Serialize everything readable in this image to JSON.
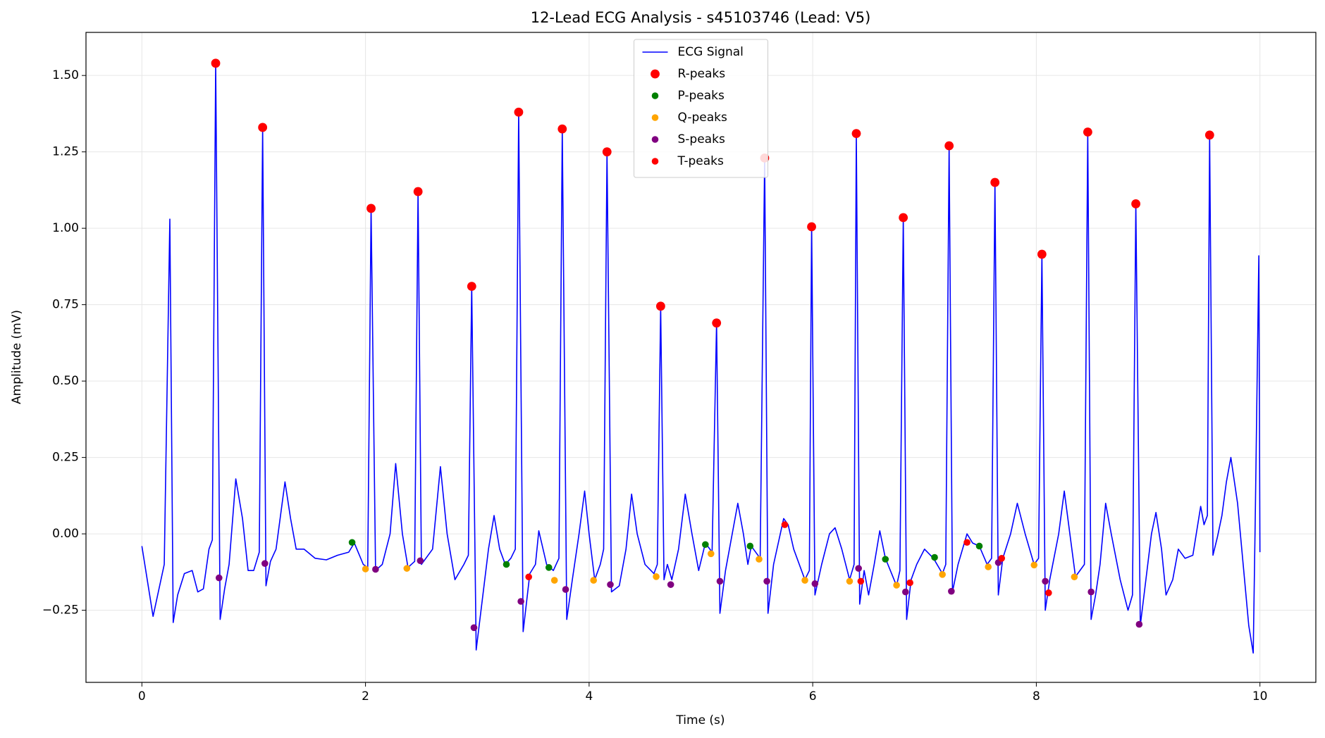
{
  "chart_data": {
    "type": "line",
    "title": "12-Lead ECG Analysis - s45103746 (Lead: V5)",
    "xlabel": "Time (s)",
    "ylabel": "Amplitude (mV)",
    "xlim": [
      -0.5,
      10.5
    ],
    "ylim": [
      -0.486,
      1.641
    ],
    "xticks": [
      0,
      2,
      4,
      6,
      8,
      10
    ],
    "yticks": [
      {
        "value": -0.25,
        "label": "−0.25"
      },
      {
        "value": 0,
        "label": "0.00"
      },
      {
        "value": 0.25,
        "label": "0.25"
      },
      {
        "value": 0.5,
        "label": "0.50"
      },
      {
        "value": 0.75,
        "label": "0.75"
      },
      {
        "value": 1,
        "label": "1.00"
      },
      {
        "value": 1.25,
        "label": "1.25"
      },
      {
        "value": 1.5,
        "label": "1.50"
      }
    ],
    "grid": true,
    "legend": "upper center",
    "series": [
      {
        "name": "ECG Signal",
        "type": "line",
        "color": "#0000ff",
        "x": [
          0,
          0.1,
          0.2,
          0.25,
          0.28,
          0.32,
          0.38,
          0.45,
          0.5,
          0.55,
          0.6,
          0.63,
          0.66,
          0.7,
          0.74,
          0.78,
          0.84,
          0.9,
          0.95,
          1.0,
          1.05,
          1.08,
          1.11,
          1.15,
          1.2,
          1.28,
          1.33,
          1.38,
          1.45,
          1.55,
          1.65,
          1.75,
          1.85,
          1.9,
          1.98,
          2.02,
          2.05,
          2.09,
          2.15,
          2.22,
          2.27,
          2.33,
          2.38,
          2.44,
          2.47,
          2.5,
          2.6,
          2.67,
          2.73,
          2.8,
          2.88,
          2.92,
          2.95,
          2.99,
          3.05,
          3.1,
          3.15,
          3.2,
          3.25,
          3.3,
          3.34,
          3.37,
          3.41,
          3.47,
          3.52,
          3.55,
          3.62,
          3.68,
          3.73,
          3.76,
          3.8,
          3.85,
          3.91,
          3.96,
          4.0,
          4.05,
          4.1,
          4.13,
          4.16,
          4.2,
          4.27,
          4.33,
          4.38,
          4.43,
          4.5,
          4.58,
          4.61,
          4.64,
          4.67,
          4.7,
          4.74,
          4.8,
          4.86,
          4.92,
          4.98,
          5.04,
          5.1,
          5.14,
          5.17,
          5.22,
          5.28,
          5.33,
          5.38,
          5.42,
          5.45,
          5.53,
          5.57,
          5.6,
          5.65,
          5.74,
          5.78,
          5.83,
          5.88,
          5.93,
          5.97,
          5.99,
          6.02,
          6.08,
          6.15,
          6.2,
          6.26,
          6.33,
          6.37,
          6.39,
          6.42,
          6.46,
          6.5,
          6.55,
          6.6,
          6.65,
          6.75,
          6.78,
          6.81,
          6.84,
          6.88,
          6.93,
          7.0,
          7.08,
          7.16,
          7.19,
          7.22,
          7.25,
          7.3,
          7.38,
          7.43,
          7.49,
          7.56,
          7.6,
          7.63,
          7.66,
          7.7,
          7.77,
          7.83,
          7.9,
          7.98,
          8.02,
          8.05,
          8.08,
          8.12,
          8.2,
          8.25,
          8.3,
          8.35,
          8.43,
          8.46,
          8.49,
          8.53,
          8.57,
          8.62,
          8.67,
          8.75,
          8.82,
          8.86,
          8.89,
          8.93,
          8.98,
          9.03,
          9.07,
          9.12,
          9.16,
          9.22,
          9.27,
          9.33,
          9.4,
          9.47,
          9.5,
          9.53,
          9.55,
          9.58,
          9.62,
          9.66,
          9.7,
          9.74,
          9.8,
          9.85,
          9.9,
          9.94,
          9.96,
          9.99,
          10.0
        ],
        "values": [
          -0.04,
          -0.27,
          -0.1,
          1.03,
          -0.29,
          -0.2,
          -0.13,
          -0.12,
          -0.19,
          -0.18,
          -0.05,
          -0.02,
          1.54,
          -0.28,
          -0.18,
          -0.1,
          0.18,
          0.05,
          -0.12,
          -0.12,
          -0.06,
          1.33,
          -0.17,
          -0.09,
          -0.05,
          0.17,
          0.05,
          -0.05,
          -0.05,
          -0.08,
          -0.085,
          -0.07,
          -0.06,
          -0.03,
          -0.1,
          -0.11,
          1.065,
          -0.12,
          -0.1,
          0.0,
          0.23,
          0.0,
          -0.11,
          -0.09,
          1.12,
          -0.1,
          -0.05,
          0.22,
          0.0,
          -0.15,
          -0.1,
          -0.07,
          0.81,
          -0.38,
          -0.2,
          -0.05,
          0.06,
          -0.05,
          -0.1,
          -0.08,
          -0.05,
          1.38,
          -0.32,
          -0.13,
          -0.1,
          0.01,
          -0.1,
          -0.12,
          -0.08,
          1.325,
          -0.28,
          -0.15,
          0.0,
          0.14,
          0.0,
          -0.15,
          -0.1,
          -0.05,
          1.25,
          -0.19,
          -0.17,
          -0.05,
          0.13,
          0.0,
          -0.1,
          -0.13,
          -0.1,
          0.745,
          -0.15,
          -0.1,
          -0.15,
          -0.05,
          0.13,
          0.0,
          -0.12,
          -0.03,
          -0.06,
          0.69,
          -0.26,
          -0.12,
          0.0,
          0.1,
          0.0,
          -0.1,
          -0.04,
          -0.08,
          1.23,
          -0.26,
          -0.1,
          0.05,
          0.03,
          -0.05,
          -0.1,
          -0.15,
          -0.12,
          1.005,
          -0.2,
          -0.1,
          0.0,
          0.02,
          -0.05,
          -0.15,
          -0.1,
          1.31,
          -0.23,
          -0.12,
          -0.2,
          -0.1,
          0.01,
          -0.08,
          -0.17,
          -0.12,
          1.035,
          -0.28,
          -0.15,
          -0.1,
          -0.05,
          -0.08,
          -0.13,
          -0.1,
          1.27,
          -0.19,
          -0.1,
          0.0,
          -0.03,
          -0.04,
          -0.1,
          -0.08,
          1.15,
          -0.2,
          -0.08,
          0.0,
          0.1,
          0.0,
          -0.1,
          -0.08,
          0.915,
          -0.25,
          -0.15,
          0.0,
          0.14,
          0.0,
          -0.14,
          -0.1,
          1.315,
          -0.28,
          -0.2,
          -0.1,
          0.1,
          0.0,
          -0.15,
          -0.25,
          -0.2,
          1.08,
          -0.3,
          -0.15,
          0.0,
          0.07,
          -0.05,
          -0.2,
          -0.15,
          -0.05,
          -0.08,
          -0.07,
          0.09,
          0.03,
          0.06,
          1.305,
          -0.07,
          -0.01,
          0.06,
          0.17,
          0.25,
          0.1,
          -0.1,
          -0.3,
          -0.39,
          0.1,
          0.91,
          -0.06
        ]
      },
      {
        "name": "R-peaks",
        "type": "scatter",
        "color": "#ff0000",
        "size": 8,
        "x": [
          0.66,
          1.08,
          2.05,
          2.47,
          2.95,
          3.37,
          3.76,
          4.16,
          4.64,
          5.14,
          5.57,
          5.99,
          6.39,
          6.81,
          7.22,
          7.63,
          8.05,
          8.46,
          8.89,
          9.55
        ],
        "values": [
          1.54,
          1.33,
          1.065,
          1.12,
          0.81,
          1.38,
          1.325,
          1.25,
          0.745,
          0.69,
          1.23,
          1.005,
          1.31,
          1.035,
          1.27,
          1.15,
          0.915,
          1.315,
          1.08,
          1.305
        ]
      },
      {
        "name": "P-peaks",
        "type": "scatter",
        "color": "#008000",
        "size": 6,
        "x": [
          1.88,
          3.26,
          3.64,
          5.04,
          5.44,
          6.65,
          7.09,
          7.49
        ],
        "values": [
          -0.028,
          -0.1,
          -0.11,
          -0.035,
          -0.04,
          -0.083,
          -0.077,
          -0.04
        ]
      },
      {
        "name": "Q-peaks",
        "type": "scatter",
        "color": "#ffa500",
        "size": 6,
        "x": [
          2.0,
          2.37,
          3.69,
          4.04,
          4.6,
          5.09,
          5.52,
          5.93,
          6.33,
          6.75,
          7.16,
          7.57,
          7.98,
          8.34
        ],
        "values": [
          -0.115,
          -0.113,
          -0.152,
          -0.152,
          -0.14,
          -0.065,
          -0.083,
          -0.152,
          -0.155,
          -0.168,
          -0.133,
          -0.108,
          -0.102,
          -0.141
        ]
      },
      {
        "name": "S-peaks",
        "type": "scatter",
        "color": "#800080",
        "size": 6,
        "x": [
          0.69,
          1.1,
          2.09,
          2.49,
          2.97,
          3.39,
          3.79,
          4.19,
          4.73,
          5.17,
          5.59,
          6.02,
          6.41,
          6.83,
          7.24,
          7.66,
          8.08,
          8.49,
          8.92
        ],
        "values": [
          -0.144,
          -0.097,
          -0.116,
          -0.088,
          -0.307,
          -0.221,
          -0.182,
          -0.166,
          -0.166,
          -0.155,
          -0.155,
          -0.163,
          -0.113,
          -0.19,
          -0.188,
          -0.094,
          -0.155,
          -0.19,
          -0.296
        ]
      },
      {
        "name": "T-peaks",
        "type": "scatter",
        "color": "#ff0000",
        "size": 6,
        "x": [
          3.46,
          5.75,
          6.43,
          6.87,
          7.38,
          7.69,
          8.11
        ],
        "values": [
          -0.141,
          0.03,
          -0.155,
          -0.16,
          -0.028,
          -0.08,
          -0.193
        ]
      }
    ]
  }
}
